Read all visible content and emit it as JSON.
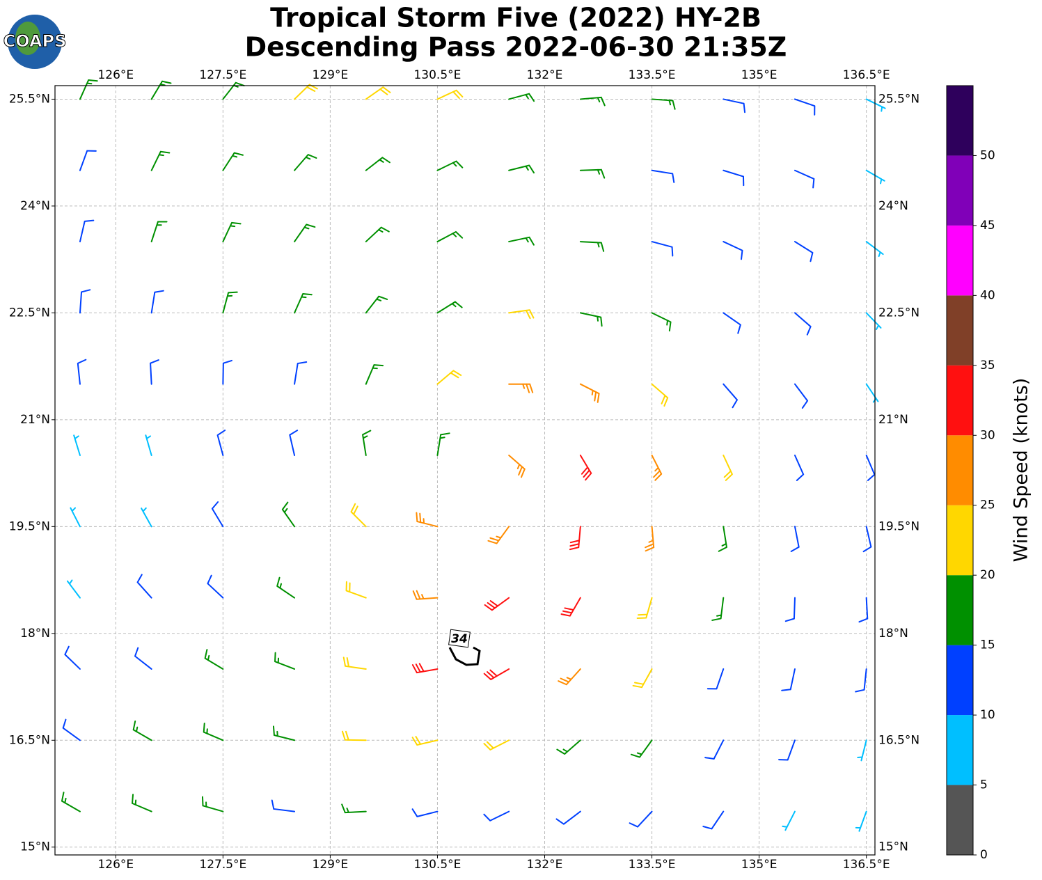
{
  "title": "Tropical Storm Five (2022) HY-2B",
  "subtitle": "Descending Pass 2022-06-30 21:35Z",
  "logo": "COAPS",
  "annotation": "34",
  "map": {
    "xlim": [
      125.15,
      136.62
    ],
    "ylim": [
      14.89,
      25.69
    ],
    "xticks": [
      {
        "value": 126,
        "label": "126°E"
      },
      {
        "value": 127.5,
        "label": "127.5°E"
      },
      {
        "value": 129,
        "label": "129°E"
      },
      {
        "value": 130.5,
        "label": "130.5°E"
      },
      {
        "value": 132,
        "label": "132°E"
      },
      {
        "value": 133.5,
        "label": "133.5°E"
      },
      {
        "value": 135,
        "label": "135°E"
      },
      {
        "value": 136.5,
        "label": "136.5°E"
      }
    ],
    "yticks": [
      {
        "value": 15,
        "label": "15°N"
      },
      {
        "value": 16.5,
        "label": "16.5°N"
      },
      {
        "value": 18,
        "label": "18°N"
      },
      {
        "value": 19.5,
        "label": "19.5°N"
      },
      {
        "value": 21,
        "label": "21°N"
      },
      {
        "value": 22.5,
        "label": "22.5°N"
      },
      {
        "value": 24,
        "label": "24°N"
      },
      {
        "value": 25.5,
        "label": "25.5°N"
      }
    ],
    "grid": true,
    "wind": {
      "lons": [
        125.5,
        126.5,
        127.5,
        128.5,
        129.5,
        130.5,
        131.5,
        132.5,
        133.5,
        134.5,
        135.5,
        136.5
      ],
      "lats": [
        25.5,
        24.5,
        23.5,
        22.5,
        21.5,
        20.5,
        19.5,
        18.5,
        17.5,
        16.5,
        15.5
      ],
      "speed": [
        [
          15,
          15,
          15,
          20,
          22,
          22,
          18,
          15,
          15,
          12,
          10,
          8
        ],
        [
          12,
          15,
          18,
          18,
          18,
          18,
          15,
          15,
          14,
          12,
          10,
          8
        ],
        [
          12,
          15,
          18,
          18,
          18,
          17,
          16,
          15,
          14,
          12,
          10,
          8
        ],
        [
          12,
          12,
          15,
          15,
          16,
          18,
          20,
          18,
          15,
          12,
          10,
          8
        ],
        [
          10,
          12,
          12,
          14,
          18,
          22,
          25,
          25,
          20,
          14,
          10,
          8
        ],
        [
          5,
          8,
          12,
          14,
          17,
          18,
          25,
          32,
          28,
          20,
          12,
          10
        ],
        [
          5,
          8,
          12,
          16,
          22,
          28,
          27,
          32,
          26,
          18,
          12,
          10
        ],
        [
          8,
          10,
          14,
          18,
          22,
          27,
          30,
          30,
          24,
          16,
          12,
          10
        ],
        [
          10,
          12,
          15,
          18,
          22,
          30,
          32,
          28,
          22,
          14,
          12,
          10
        ],
        [
          14,
          17,
          18,
          15,
          20,
          24,
          22,
          18,
          15,
          12,
          10,
          8
        ],
        [
          17,
          18,
          16,
          14,
          15,
          14,
          12,
          12,
          12,
          10,
          8,
          8
        ]
      ],
      "dir": [
        [
          24,
          31,
          38,
          46,
          55,
          65,
          75,
          85,
          94,
          102,
          109,
          116
        ],
        [
          20,
          26,
          33,
          41,
          52,
          64,
          76,
          88,
          99,
          107,
          114,
          120
        ],
        [
          13,
          18,
          25,
          35,
          47,
          62,
          78,
          93,
          105,
          115,
          122,
          127
        ],
        [
          4,
          9,
          15,
          24,
          38,
          58,
          82,
          102,
          116,
          125,
          131,
          136
        ],
        [
          354,
          357,
          1,
          9,
          23,
          50,
          90,
          117,
          131,
          139,
          143,
          146
        ],
        [
          343,
          344,
          345,
          347,
          351,
          9,
          131,
          149,
          153,
          155,
          156,
          157
        ],
        [
          333,
          331,
          329,
          325,
          315,
          284,
          216,
          185,
          175,
          171,
          169,
          167
        ],
        [
          323,
          318,
          313,
          304,
          290,
          266,
          234,
          210,
          196,
          187,
          182,
          177
        ],
        [
          314,
          308,
          301,
          291,
          278,
          260,
          240,
          222,
          209,
          199,
          192,
          186
        ],
        [
          306,
          300,
          293,
          284,
          271,
          257,
          243,
          229,
          216,
          207,
          200,
          194
        ],
        [
          300,
          293,
          286,
          277,
          267,
          256,
          244,
          233,
          223,
          214,
          207,
          200
        ]
      ]
    }
  },
  "colorbar": {
    "label": "Wind Speed (knots)",
    "clim": [
      0,
      55
    ],
    "yticks": [
      0,
      5,
      10,
      15,
      20,
      25,
      30,
      35,
      40,
      45,
      50
    ],
    "colors": [
      "#555555",
      "#00bfff",
      "#0040ff",
      "#009000",
      "#ffd700",
      "#ff8c00",
      "#ff1010",
      "#804028",
      "#ff00ff",
      "#8000b8",
      "#2e005c"
    ]
  }
}
